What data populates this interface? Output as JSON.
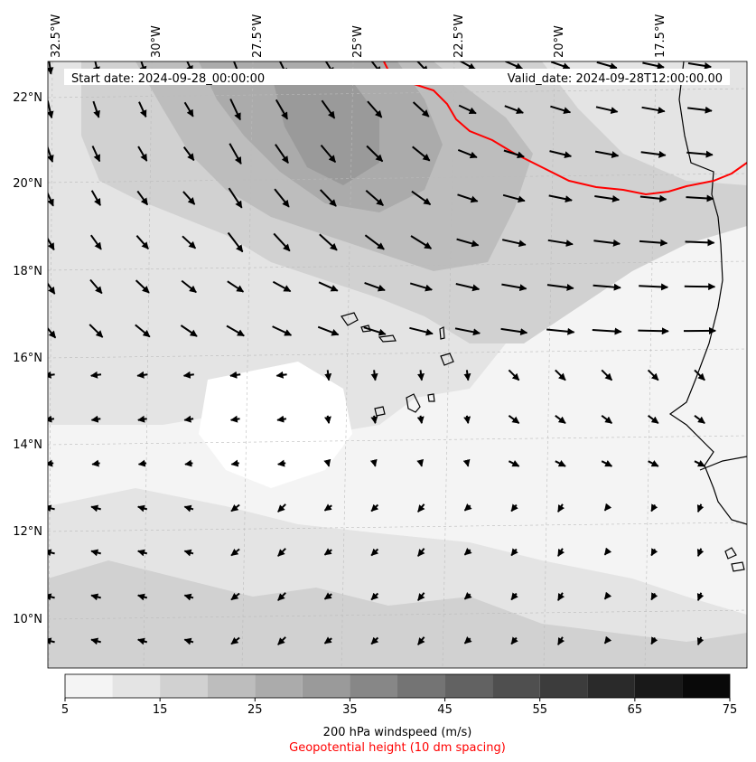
{
  "map": {
    "start_label": "Start date: 2024-09-28_00:00:00",
    "valid_label": "Valid_date: 2024-09-28T12:00:00.00",
    "lon_ticks": [
      "32.5°W",
      "30°W",
      "27.5°W",
      "25°W",
      "22.5°W",
      "20°W",
      "17.5°W"
    ],
    "lat_ticks": [
      "22°N",
      "20°N",
      "18°N",
      "16°N",
      "14°N",
      "12°N",
      "10°N"
    ],
    "geopotential_color": "#ff0000",
    "coast_color": "#000000"
  },
  "colorbar": {
    "ticks": [
      "5",
      "15",
      "25",
      "35",
      "45",
      "55",
      "65",
      "75"
    ],
    "values": [
      5,
      10,
      15,
      20,
      25,
      30,
      35,
      40,
      45,
      50,
      55,
      60,
      65,
      70,
      75
    ],
    "colors": [
      "#f4f4f4",
      "#e4e4e4",
      "#d1d1d1",
      "#bdbdbd",
      "#ababab",
      "#9a9a9a",
      "#878787",
      "#747474",
      "#626262",
      "#4f4f4f",
      "#3c3c3c",
      "#2a2a2a",
      "#191919",
      "#090909"
    ],
    "label": "200 hPa windspeed (m/s)",
    "sublabel": "Geopotential height (10 dm spacing)"
  }
}
